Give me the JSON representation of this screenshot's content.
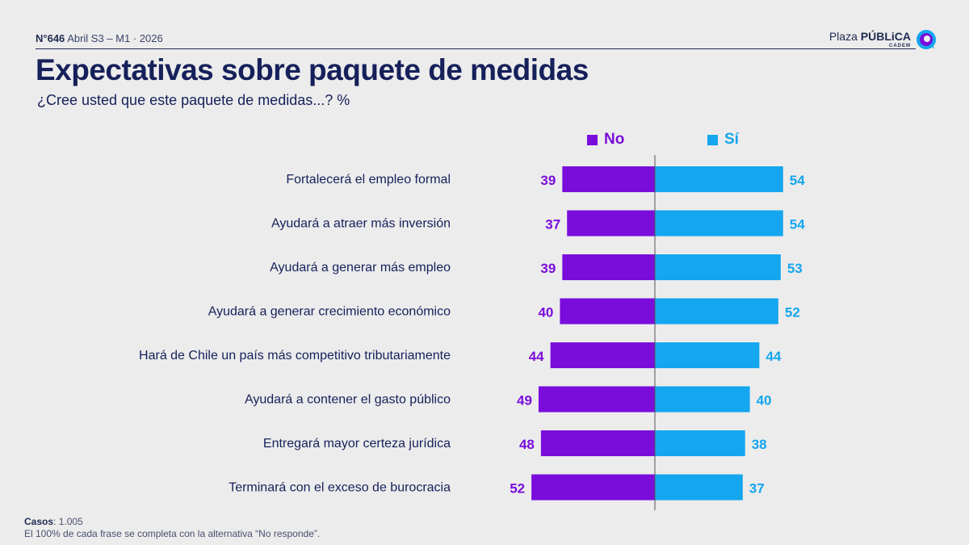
{
  "header": {
    "code_bold": "N°646",
    "code_rest": "Abril S3 – M1 · 2026",
    "brand_light": "Plaza",
    "brand_strong": "PÚBLiCA",
    "brand_sub": "CADEM"
  },
  "title": "Expectativas sobre paquete de medidas",
  "subtitle": "¿Cree usted que este paquete de medidas...? %",
  "colors": {
    "no": "#7a0ddb",
    "si": "#14a6ee",
    "text": "#16205a"
  },
  "chart_data": {
    "type": "bar",
    "orientation": "horizontal-diverging",
    "categories": [
      "Fortalecerá el empleo formal",
      "Ayudará a atraer más inversión",
      "Ayudará a generar más empleo",
      "Ayudará a generar crecimiento económico",
      "Hará de Chile un país más competitivo tributariamente",
      "Ayudará a contener el gasto público",
      "Entregará mayor certeza jurídica",
      "Terminará con el exceso de burocracia"
    ],
    "series": [
      {
        "name": "No",
        "values": [
          39,
          37,
          39,
          40,
          44,
          49,
          48,
          52
        ]
      },
      {
        "name": "Sí",
        "values": [
          54,
          54,
          53,
          52,
          44,
          40,
          38,
          37
        ]
      }
    ],
    "legend": "top"
  },
  "footer": {
    "casos_label": "Casos",
    "casos_value": ": 1.005",
    "note": "El 100% de cada frase se completa con la alternativa “No responde”."
  }
}
